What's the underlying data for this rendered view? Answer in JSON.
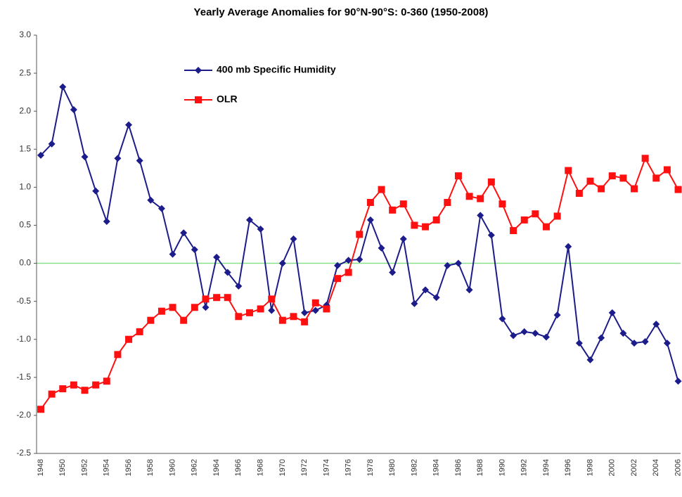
{
  "chart_data": {
    "type": "line",
    "title": "Yearly Average Anomalies for 90°N-90°S: 0-360 (1950-2008)",
    "categories": [
      "1948",
      null,
      "1950",
      null,
      "1952",
      null,
      "1954",
      null,
      "1956",
      null,
      "1958",
      null,
      "1960",
      null,
      "1962",
      null,
      "1964",
      null,
      "1966",
      null,
      "1968",
      null,
      "1970",
      null,
      "1972",
      null,
      "1974",
      null,
      "1976",
      null,
      "1978",
      null,
      "1980",
      null,
      "1982",
      null,
      "1984",
      null,
      "1986",
      null,
      "1988",
      null,
      "1990",
      null,
      "1992",
      null,
      "1994",
      null,
      "1996",
      null,
      "1998",
      null,
      "2000",
      null,
      "2002",
      null,
      "2004",
      null,
      "2006"
    ],
    "series": [
      {
        "name": "400 mb Specific Humidity",
        "color": "#1c1c8a",
        "marker": "diamond",
        "values": [
          1.42,
          1.57,
          2.32,
          2.02,
          1.4,
          0.95,
          0.55,
          1.38,
          1.82,
          1.35,
          0.83,
          0.72,
          0.12,
          0.4,
          0.18,
          -0.58,
          0.08,
          -0.12,
          -0.3,
          0.57,
          0.45,
          -0.62,
          0.0,
          0.32,
          -0.65,
          -0.62,
          -0.55,
          -0.03,
          0.04,
          0.05,
          0.57,
          0.2,
          -0.12,
          0.32,
          -0.53,
          -0.35,
          -0.45,
          -0.03,
          0.0,
          -0.35,
          0.63,
          0.37,
          -0.73,
          -0.95,
          -0.9,
          -0.92,
          -0.97,
          -0.68,
          0.22,
          -1.05,
          -1.27,
          -0.98,
          -0.65,
          -0.92,
          -1.05,
          -1.03,
          -0.8,
          -1.05,
          -1.55
        ]
      },
      {
        "name": "OLR",
        "color": "#ff1010",
        "marker": "square",
        "values": [
          -1.92,
          -1.72,
          -1.65,
          -1.6,
          -1.67,
          -1.6,
          -1.55,
          -1.2,
          -1.0,
          -0.9,
          -0.75,
          -0.63,
          -0.58,
          -0.75,
          -0.58,
          -0.47,
          -0.45,
          -0.45,
          -0.7,
          -0.65,
          -0.6,
          -0.47,
          -0.75,
          -0.7,
          -0.77,
          -0.52,
          -0.6,
          -0.2,
          -0.12,
          0.38,
          0.8,
          0.97,
          0.7,
          0.78,
          0.5,
          0.48,
          0.57,
          0.8,
          1.15,
          0.88,
          0.85,
          1.07,
          0.78,
          0.43,
          0.57,
          0.65,
          0.48,
          0.62,
          1.22,
          0.92,
          1.08,
          0.98,
          1.15,
          1.12,
          0.98,
          1.38,
          1.12,
          1.23,
          0.97
        ]
      }
    ],
    "ylim": [
      -2.5,
      3
    ],
    "yticks": [
      {
        "value": 3,
        "label": "3.0"
      },
      2.5,
      {
        "value": 2,
        "label": "2.0"
      },
      1.5,
      {
        "value": 1,
        "label": "1.0"
      },
      0.5,
      {
        "value": 0,
        "label": "0.0"
      },
      -0.5,
      {
        "value": -1,
        "label": "-1.0"
      },
      -1.5,
      {
        "value": -2,
        "label": "-2.0"
      },
      -2.5
    ],
    "grid": false,
    "zero_line": {
      "value": 0,
      "color": "#88e088"
    },
    "legend": "upper left"
  }
}
